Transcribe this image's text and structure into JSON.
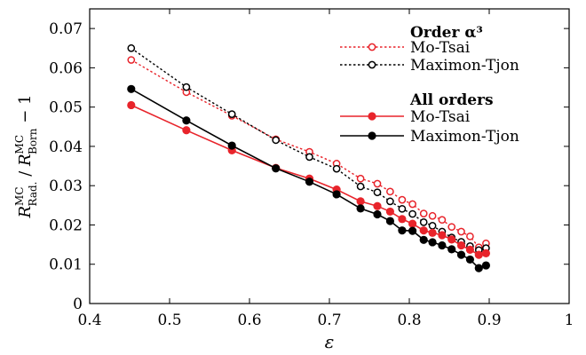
{
  "chart_data": {
    "type": "line",
    "xlabel": "ε",
    "ylabel": "R^MC_Rad. / R^MC_Born − 1",
    "xlim": [
      0.4,
      1.0
    ],
    "ylim": [
      0,
      0.075
    ],
    "x_ticks": [
      "0.4",
      "0.5",
      "0.6",
      "0.7",
      "0.8",
      "0.9",
      "1"
    ],
    "y_ticks": [
      "0",
      "0.01",
      "0.02",
      "0.03",
      "0.04",
      "0.05",
      "0.06",
      "0.07"
    ],
    "grid": false,
    "legend": {
      "placement": "top-right",
      "groups": [
        {
          "heading": "Order α³",
          "entries": [
            "Mo-Tsai",
            "Maximon-Tjon"
          ]
        },
        {
          "heading": "All orders",
          "entries": [
            "Mo-Tsai",
            "Maximon-Tjon"
          ]
        }
      ]
    },
    "series": [
      {
        "name": "Mo-Tsai",
        "group": "Order α³",
        "color": "#e8242b",
        "style": "dotted-open",
        "x": [
          0.452,
          0.521,
          0.578,
          0.633,
          0.675,
          0.709,
          0.739,
          0.76,
          0.776,
          0.791,
          0.804,
          0.818,
          0.829,
          0.841,
          0.853,
          0.865,
          0.876,
          0.887,
          0.896
        ],
        "y": [
          0.062,
          0.0538,
          0.0478,
          0.0418,
          0.0386,
          0.0356,
          0.0318,
          0.0305,
          0.0285,
          0.0264,
          0.0253,
          0.0229,
          0.0223,
          0.0213,
          0.0195,
          0.0183,
          0.0171,
          0.0143,
          0.0153
        ]
      },
      {
        "name": "Maximon-Tjon",
        "group": "Order α³",
        "color": "#000000",
        "style": "dotted-open",
        "x": [
          0.452,
          0.521,
          0.578,
          0.633,
          0.675,
          0.709,
          0.739,
          0.76,
          0.776,
          0.791,
          0.804,
          0.818,
          0.829,
          0.841,
          0.853,
          0.865,
          0.876,
          0.887,
          0.896
        ],
        "y": [
          0.065,
          0.0551,
          0.0482,
          0.0416,
          0.0373,
          0.0343,
          0.0298,
          0.0283,
          0.026,
          0.0241,
          0.0228,
          0.0207,
          0.0198,
          0.0183,
          0.0168,
          0.0157,
          0.0146,
          0.0136,
          0.0141
        ]
      },
      {
        "name": "Mo-Tsai",
        "group": "All orders",
        "color": "#e8242b",
        "style": "solid-filled",
        "x": [
          0.452,
          0.521,
          0.578,
          0.633,
          0.675,
          0.709,
          0.739,
          0.76,
          0.776,
          0.791,
          0.804,
          0.818,
          0.829,
          0.841,
          0.853,
          0.865,
          0.876,
          0.887,
          0.896
        ],
        "y": [
          0.0505,
          0.0441,
          0.039,
          0.0345,
          0.0318,
          0.029,
          0.026,
          0.0248,
          0.0234,
          0.0215,
          0.0203,
          0.0186,
          0.018,
          0.0174,
          0.0163,
          0.0148,
          0.0137,
          0.0124,
          0.0128
        ]
      },
      {
        "name": "Maximon-Tjon",
        "group": "All orders",
        "color": "#000000",
        "style": "solid-filled",
        "x": [
          0.452,
          0.521,
          0.578,
          0.633,
          0.675,
          0.709,
          0.739,
          0.76,
          0.776,
          0.791,
          0.804,
          0.818,
          0.829,
          0.841,
          0.853,
          0.865,
          0.876,
          0.887,
          0.896
        ],
        "y": [
          0.0546,
          0.0466,
          0.0402,
          0.0344,
          0.031,
          0.0278,
          0.0242,
          0.0227,
          0.021,
          0.0186,
          0.0185,
          0.0162,
          0.0156,
          0.0148,
          0.0138,
          0.0124,
          0.0112,
          0.009,
          0.0097
        ]
      }
    ]
  }
}
